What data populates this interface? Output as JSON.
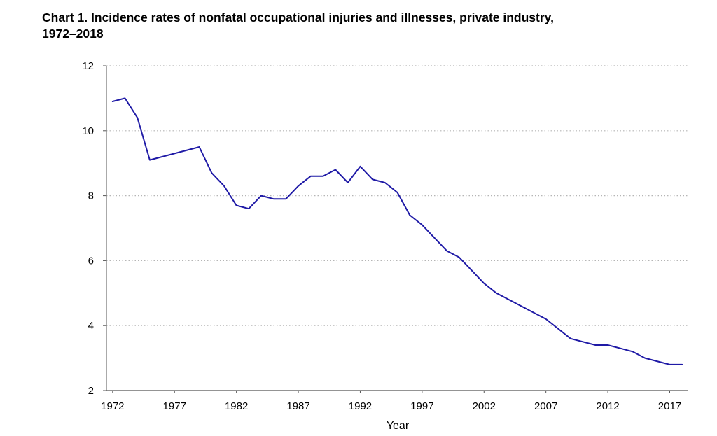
{
  "chart_data": {
    "type": "line",
    "title_line1": "Chart 1. Incidence rates of nonfatal occupational injuries and illnesses, private industry,",
    "title_line2": "1972–2018",
    "xlabel": "Year",
    "ylabel": "",
    "xlim": [
      1971.5,
      2018.5
    ],
    "ylim": [
      2,
      12
    ],
    "x_ticks": [
      1972,
      1977,
      1982,
      1987,
      1992,
      1997,
      2002,
      2007,
      2012,
      2017
    ],
    "y_ticks": [
      2,
      4,
      6,
      8,
      10,
      12
    ],
    "grid": "horizontal dotted",
    "colors": {
      "line": "#1f1aa6",
      "grid": "#b5b5b5",
      "axis": "#555555"
    },
    "series": [
      {
        "x": [
          1972,
          1973,
          1974,
          1975,
          1979,
          1980,
          1981,
          1982,
          1983,
          1984,
          1985,
          1986,
          1987,
          1988,
          1989,
          1990,
          1991,
          1992,
          1993,
          1994,
          1995,
          1996,
          1997,
          1998,
          1999,
          2000,
          2001,
          2002,
          2003,
          2007,
          2009,
          2011,
          2012,
          2014,
          2015,
          2017,
          2018
        ],
        "y": [
          10.9,
          11.0,
          10.4,
          9.1,
          9.5,
          8.7,
          8.3,
          7.7,
          7.6,
          8.0,
          7.9,
          7.9,
          8.3,
          8.6,
          8.6,
          8.8,
          8.4,
          8.9,
          8.5,
          8.4,
          8.1,
          7.4,
          7.1,
          6.7,
          6.3,
          6.1,
          5.7,
          5.3,
          5.0,
          4.2,
          3.6,
          3.4,
          3.4,
          3.2,
          3.0,
          2.8,
          2.8
        ]
      }
    ]
  }
}
